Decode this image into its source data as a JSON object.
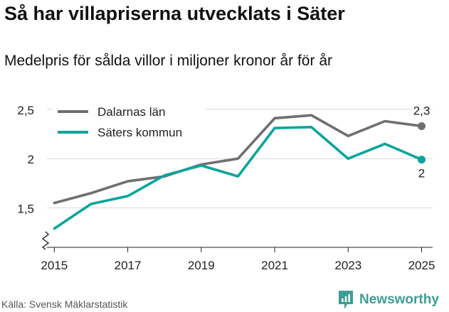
{
  "title": "Så har villapriserna utvecklats i Säter",
  "subtitle": "Medelpris för sålda villor i miljoner kronor år för år",
  "source": "Källa: Svensk Mäklarstatistik",
  "brand": "Newsworthy",
  "chart_data": {
    "type": "line",
    "x": [
      2015,
      2016,
      2017,
      2018,
      2019,
      2020,
      2021,
      2022,
      2023,
      2024,
      2025
    ],
    "xticks": [
      2015,
      2017,
      2019,
      2021,
      2023,
      2025
    ],
    "xtick_labels": [
      "2015",
      "2017",
      "2019",
      "2021",
      "2023",
      "2025"
    ],
    "yticks": [
      1.5,
      2,
      2.5
    ],
    "ytick_labels": [
      "1,5",
      "2",
      "2,5"
    ],
    "ylim": [
      1.1,
      2.6
    ],
    "xlim": [
      2014.8,
      2025.3
    ],
    "xlabel": "",
    "ylabel": "",
    "grid": true,
    "legend_position": "top-left",
    "series": [
      {
        "name": "Dalarnas län",
        "color": "#6f6e73",
        "values": [
          1.55,
          1.65,
          1.77,
          1.82,
          1.94,
          2.0,
          2.41,
          2.44,
          2.23,
          2.38,
          2.33
        ],
        "end_label": "2,3"
      },
      {
        "name": "Säters kommun",
        "color": "#0ca49b",
        "values": [
          1.29,
          1.54,
          1.62,
          1.83,
          1.93,
          1.82,
          2.31,
          2.32,
          2.0,
          2.15,
          1.99
        ],
        "end_label": "2"
      }
    ]
  }
}
